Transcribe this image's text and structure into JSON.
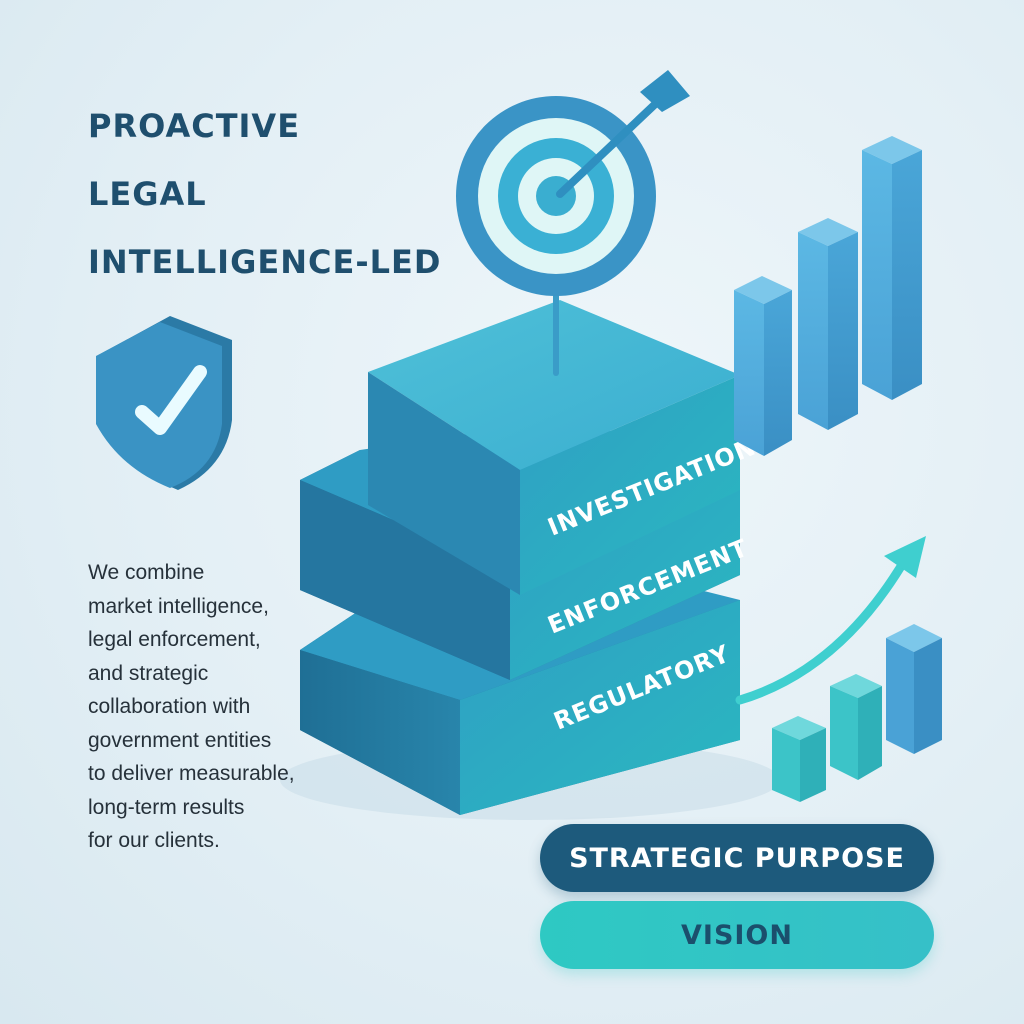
{
  "headline": {
    "lines": [
      "PROACTIVE",
      "LEGAL",
      "INTELLIGENCE-LED"
    ]
  },
  "body_text": {
    "lines": [
      "We combine",
      "market intelligence,",
      "legal enforcement,",
      "and strategic",
      "collaboration with",
      "government entities",
      "to deliver measurable,",
      "long-term results",
      "for our clients."
    ]
  },
  "steps": {
    "top": "INVESTIGATION",
    "middle": "ENFORCEMENT",
    "bottom": "REGULATORY"
  },
  "buttons": {
    "strategic_purpose": "STRATEGIC PURPOSE",
    "vision": "VISION"
  },
  "icons": {
    "shield": "shield-check-icon",
    "target": "target-icon",
    "arrow": "trend-arrow-icon"
  },
  "colors": {
    "dark_blue": "#1d5a7c",
    "teal": "#2ec9c3",
    "bar_blue": "#3f9dd0",
    "text_dark": "#1f4f6e"
  }
}
